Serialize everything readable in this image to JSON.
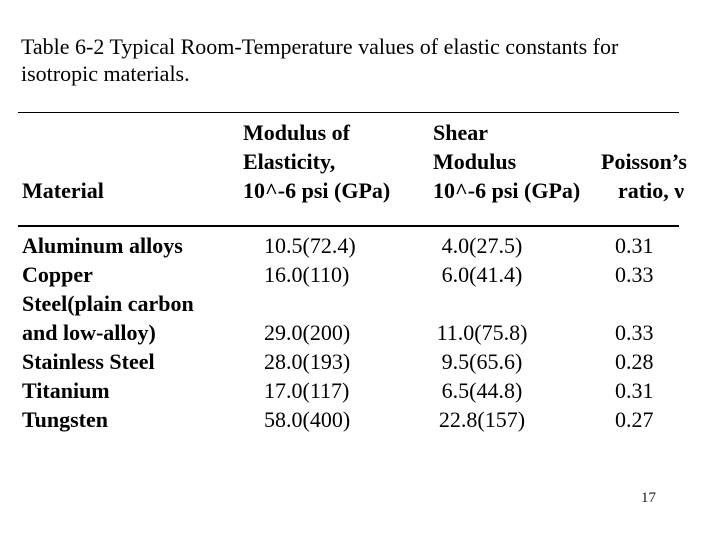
{
  "slide": {
    "title_line1": "Table 6-2 Typical Room-Temperature values of elastic constants for",
    "title_line2": "isotropic materials.",
    "page_number": "17"
  },
  "table": {
    "headers": {
      "material": "Material",
      "modulus_line1": "Modulus of",
      "modulus_line2": "Elasticity,",
      "modulus_line3": "10^-6 psi (GPa)",
      "shear_line1": "Shear",
      "shear_line2": "Modulus",
      "shear_line3": "10^-6 psi (GPa)",
      "poisson_line1": "Poisson’s",
      "poisson_line2": "ratio, ν"
    },
    "rows": [
      {
        "material": "Aluminum alloys",
        "elastic_modulus": "10.5(72.4)",
        "shear_modulus": "4.0(27.5)",
        "poissons_ratio": "0.31"
      },
      {
        "material": "Copper",
        "elastic_modulus": "16.0(110)",
        "shear_modulus": "6.0(41.4)",
        "poissons_ratio": "0.33"
      },
      {
        "material": "Steel(plain carbon",
        "elastic_modulus": "",
        "shear_modulus": "",
        "poissons_ratio": ""
      },
      {
        "material": "and low-alloy)",
        "elastic_modulus": "29.0(200)",
        "shear_modulus": "11.0(75.8)",
        "poissons_ratio": "0.33"
      },
      {
        "material": "Stainless Steel",
        "elastic_modulus": "28.0(193)",
        "shear_modulus": "9.5(65.6)",
        "poissons_ratio": "0.28"
      },
      {
        "material": "Titanium",
        "elastic_modulus": "17.0(117)",
        "shear_modulus": "6.5(44.8)",
        "poissons_ratio": "0.31"
      },
      {
        "material": "Tungsten",
        "elastic_modulus": "58.0(400)",
        "shear_modulus": "22.8(157)",
        "poissons_ratio": "0.27"
      }
    ]
  }
}
